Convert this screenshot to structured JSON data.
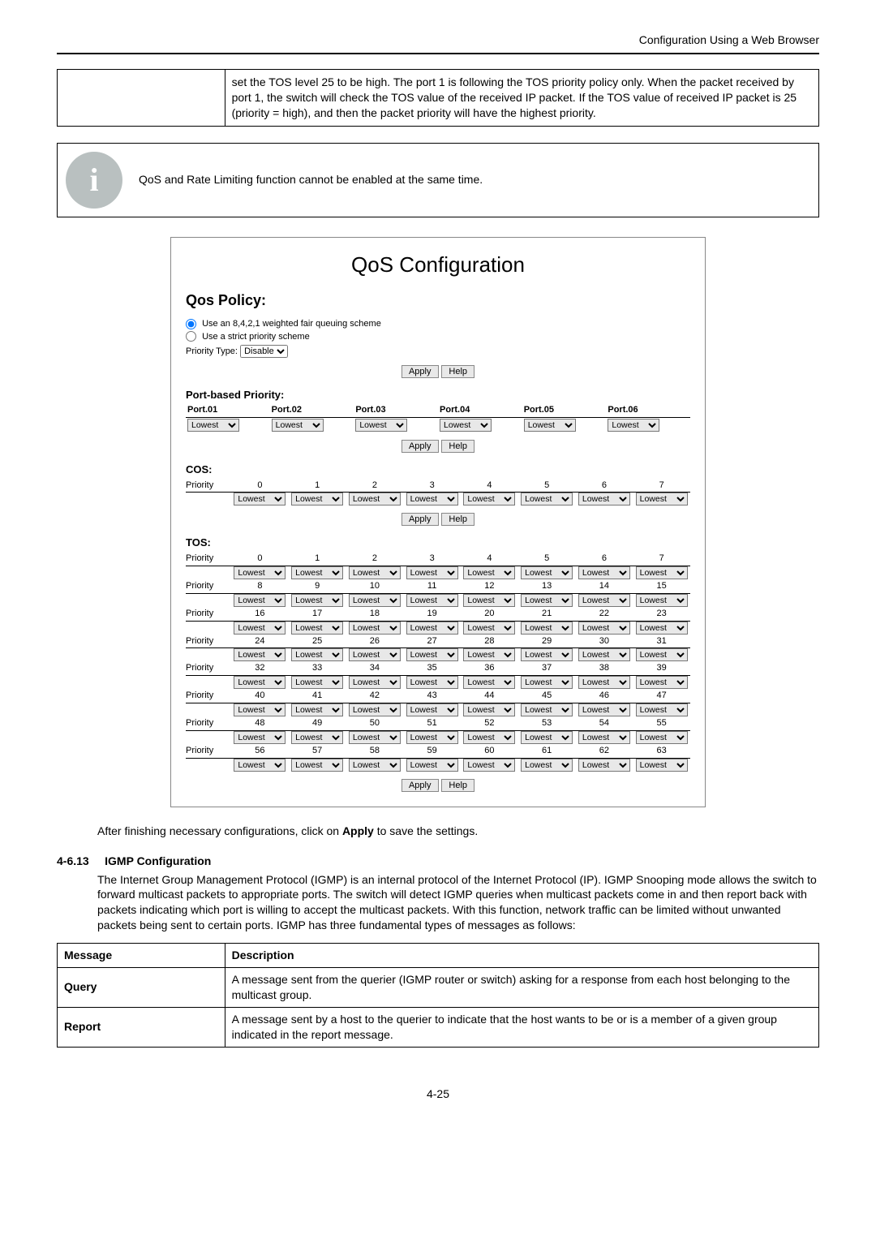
{
  "header": {
    "right_text": "Configuration Using a Web Browser"
  },
  "top_table": {
    "cell_text": "set the TOS level 25 to be high. The port 1 is following the TOS priority policy only. When the packet received by port 1, the switch will check the TOS value of the received IP packet. If the TOS value of received IP packet is 25 (priority = high), and then the packet priority will have the highest priority."
  },
  "note": {
    "text": "QoS and Rate Limiting function cannot be enabled at the same time."
  },
  "qos_panel": {
    "title": "QoS Configuration",
    "policy_heading": "Qos Policy:",
    "radio1": "Use an 8,4,2,1 weighted fair queuing scheme",
    "radio2": "Use a strict priority scheme",
    "priority_type_label": "Priority Type:",
    "priority_type_value": "Disable",
    "apply_label": "Apply",
    "help_label": "Help",
    "port_heading": "Port-based Priority:",
    "port_headers": [
      "Port.01",
      "Port.02",
      "Port.03",
      "Port.04",
      "Port.05",
      "Port.06"
    ],
    "port_value": "Lowest",
    "cos_heading": "COS:",
    "cos_label": "Priority",
    "cos_nums": [
      "0",
      "1",
      "2",
      "3",
      "4",
      "5",
      "6",
      "7"
    ],
    "cos_value": "Lowest",
    "tos_heading": "TOS:",
    "tos_label": "Priority",
    "tos_value": "Lowest"
  },
  "after_fig": {
    "text_prefix": "After finishing necessary configurations, click on ",
    "apply_word": "Apply",
    "text_suffix": " to save the settings."
  },
  "section": {
    "num": "4-6.13",
    "title": "IGMP Configuration",
    "body": "The Internet Group Management Protocol (IGMP) is an internal protocol of the Internet Protocol (IP). IGMP Snooping mode allows the switch to forward multicast packets to appropriate ports. The switch will detect IGMP queries when multicast packets come in and then report back with packets indicating which port is willing to accept the multicast packets. With this function, network traffic can be limited without unwanted packets being sent to certain ports. IGMP has three fundamental types of messages as follows:"
  },
  "igmp_table": {
    "headers": [
      "Message",
      "Description"
    ],
    "rows": [
      {
        "key": "Query",
        "desc": "A message sent from the querier (IGMP router or switch) asking for a response from each host belonging to the multicast group."
      },
      {
        "key": "Report",
        "desc": "A message sent by a host to the querier to indicate that the host wants to be or is a member of a given group indicated in the report message."
      }
    ]
  },
  "footer": {
    "page_num": "4-25"
  },
  "styling": {
    "page_bg": "#ffffff",
    "text_color": "#000000",
    "note_icon_bg": "#b9c0c0",
    "note_icon_fg": "#ffffff",
    "btn_bg": "#e8e8e8",
    "select_bg": "#e8e8e8",
    "panel_border": "#888888"
  }
}
